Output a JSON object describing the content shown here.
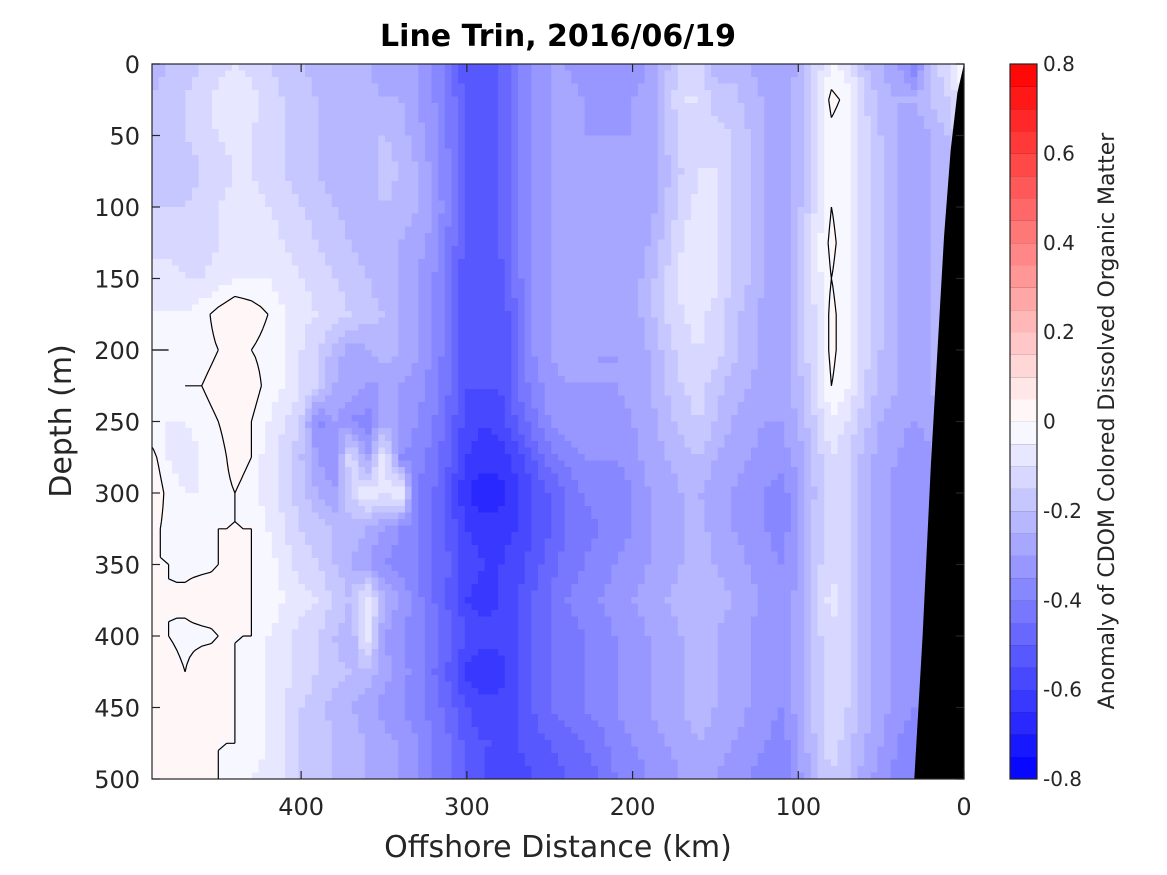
{
  "chart_data": {
    "type": "heatmap",
    "title": "Line Trin, 2016/06/19",
    "xlabel": "Offshore Distance (km)",
    "ylabel": "Depth (m)",
    "colorbar_label": "Anomaly of CDOM Colored Dissolved Organic Matter",
    "xlim": [
      490,
      0
    ],
    "ylim": [
      0,
      500
    ],
    "x_reversed": true,
    "y_reversed": true,
    "xticks": [
      {
        "value": 400,
        "label": "400"
      },
      {
        "value": 300,
        "label": "300"
      },
      {
        "value": 200,
        "label": "200"
      },
      {
        "value": 100,
        "label": "100"
      },
      {
        "value": 0,
        "label": "0"
      }
    ],
    "yticks": [
      {
        "value": 0,
        "label": "0"
      },
      {
        "value": 50,
        "label": "50"
      },
      {
        "value": 100,
        "label": "100"
      },
      {
        "value": 150,
        "label": "150"
      },
      {
        "value": 200,
        "label": "200"
      },
      {
        "value": 250,
        "label": "250"
      },
      {
        "value": 300,
        "label": "300"
      },
      {
        "value": 350,
        "label": "350"
      },
      {
        "value": 400,
        "label": "400"
      },
      {
        "value": 450,
        "label": "450"
      },
      {
        "value": 500,
        "label": "500"
      }
    ],
    "colorbar": {
      "clim": [
        -0.8,
        0.8
      ],
      "levels_step": 0.05,
      "ticks": [
        {
          "value": 0.8,
          "label": "0.8"
        },
        {
          "value": 0.6,
          "label": "0.6"
        },
        {
          "value": 0.4,
          "label": "0.4"
        },
        {
          "value": 0.2,
          "label": "0.2"
        },
        {
          "value": 0,
          "label": "0"
        },
        {
          "value": -0.2,
          "label": "-0.2"
        },
        {
          "value": -0.4,
          "label": "-0.4"
        },
        {
          "value": -0.6,
          "label": "-0.6"
        },
        {
          "value": -0.8,
          "label": "-0.8"
        }
      ],
      "colormap": {
        "negative": "#0000ff",
        "zero": "#ffffff",
        "positive": "#ff0000"
      }
    },
    "x_profiles": [
      0,
      10,
      20,
      30,
      40,
      50,
      60,
      70,
      80,
      90,
      100,
      110,
      120,
      130,
      140,
      150,
      160,
      170,
      180,
      190,
      200,
      210,
      220,
      230,
      240,
      250,
      260,
      270,
      280,
      290,
      300,
      310,
      320,
      330,
      340,
      350,
      360,
      370,
      380,
      390,
      400,
      410,
      420,
      430,
      440,
      450,
      460,
      470,
      480,
      490
    ],
    "depths": [
      0,
      25,
      50,
      75,
      100,
      125,
      150,
      175,
      200,
      225,
      250,
      275,
      300,
      325,
      350,
      375,
      400,
      425,
      450,
      475,
      500
    ],
    "values": [
      [
        0.0,
        -0.1,
        -0.2,
        -0.4,
        -0.3,
        -0.25,
        -0.2,
        -0.08,
        -0.05,
        -0.15,
        -0.25,
        -0.3,
        -0.28,
        -0.25,
        -0.22,
        -0.22,
        -0.12,
        -0.1,
        -0.22,
        -0.3,
        -0.32,
        -0.35,
        -0.35,
        -0.32,
        -0.3,
        -0.3,
        -0.35,
        -0.4,
        -0.5,
        -0.55,
        -0.55,
        -0.45,
        -0.35,
        -0.3,
        -0.28,
        -0.28,
        -0.25,
        -0.25,
        -0.25,
        -0.22,
        -0.2,
        -0.18,
        -0.15,
        -0.12,
        -0.1,
        -0.12,
        -0.15,
        -0.18,
        -0.2,
        -0.22
      ],
      [
        -0.05,
        -0.15,
        -0.2,
        -0.25,
        -0.25,
        -0.22,
        -0.15,
        -0.02,
        0.02,
        -0.1,
        -0.22,
        -0.28,
        -0.26,
        -0.22,
        -0.18,
        -0.18,
        -0.1,
        -0.1,
        -0.2,
        -0.28,
        -0.3,
        -0.32,
        -0.32,
        -0.3,
        -0.28,
        -0.3,
        -0.35,
        -0.4,
        -0.5,
        -0.55,
        -0.52,
        -0.42,
        -0.35,
        -0.3,
        -0.25,
        -0.25,
        -0.22,
        -0.22,
        -0.22,
        -0.2,
        -0.18,
        -0.15,
        -0.12,
        -0.08,
        -0.05,
        -0.08,
        -0.12,
        -0.15,
        -0.18,
        -0.2
      ],
      [
        -0.1,
        -0.2,
        -0.25,
        -0.28,
        -0.25,
        -0.2,
        -0.12,
        -0.05,
        -0.02,
        -0.12,
        -0.22,
        -0.28,
        -0.26,
        -0.2,
        -0.15,
        -0.12,
        -0.1,
        -0.12,
        -0.2,
        -0.28,
        -0.3,
        -0.3,
        -0.3,
        -0.3,
        -0.28,
        -0.3,
        -0.35,
        -0.42,
        -0.5,
        -0.55,
        -0.52,
        -0.42,
        -0.32,
        -0.28,
        -0.22,
        -0.2,
        -0.2,
        -0.22,
        -0.22,
        -0.2,
        -0.18,
        -0.15,
        -0.12,
        -0.1,
        -0.08,
        -0.1,
        -0.12,
        -0.15,
        -0.18,
        -0.2
      ],
      [
        -0.15,
        -0.2,
        -0.25,
        -0.28,
        -0.25,
        -0.2,
        -0.12,
        -0.05,
        -0.02,
        -0.12,
        -0.22,
        -0.28,
        -0.25,
        -0.2,
        -0.15,
        -0.1,
        -0.1,
        -0.15,
        -0.22,
        -0.28,
        -0.3,
        -0.3,
        -0.28,
        -0.28,
        -0.28,
        -0.3,
        -0.35,
        -0.42,
        -0.5,
        -0.52,
        -0.5,
        -0.4,
        -0.32,
        -0.25,
        -0.2,
        -0.18,
        -0.22,
        -0.25,
        -0.22,
        -0.2,
        -0.18,
        -0.15,
        -0.12,
        -0.1,
        -0.1,
        -0.12,
        -0.15,
        -0.18,
        -0.18,
        -0.18
      ],
      [
        -0.15,
        -0.22,
        -0.25,
        -0.28,
        -0.25,
        -0.2,
        -0.12,
        -0.05,
        0.0,
        -0.1,
        -0.22,
        -0.28,
        -0.25,
        -0.2,
        -0.15,
        -0.1,
        -0.08,
        -0.12,
        -0.2,
        -0.28,
        -0.3,
        -0.3,
        -0.28,
        -0.28,
        -0.28,
        -0.3,
        -0.35,
        -0.42,
        -0.5,
        -0.52,
        -0.5,
        -0.4,
        -0.3,
        -0.25,
        -0.22,
        -0.2,
        -0.22,
        -0.22,
        -0.2,
        -0.18,
        -0.15,
        -0.12,
        -0.1,
        -0.08,
        -0.08,
        -0.1,
        -0.12,
        -0.15,
        -0.15,
        -0.15
      ],
      [
        -0.15,
        -0.22,
        -0.25,
        -0.28,
        -0.25,
        -0.2,
        -0.12,
        -0.05,
        0.02,
        -0.08,
        -0.2,
        -0.28,
        -0.25,
        -0.2,
        -0.15,
        -0.08,
        -0.05,
        -0.1,
        -0.18,
        -0.25,
        -0.28,
        -0.3,
        -0.28,
        -0.28,
        -0.28,
        -0.3,
        -0.35,
        -0.42,
        -0.5,
        -0.55,
        -0.52,
        -0.42,
        -0.32,
        -0.28,
        -0.25,
        -0.22,
        -0.22,
        -0.2,
        -0.18,
        -0.15,
        -0.12,
        -0.1,
        -0.08,
        -0.08,
        -0.08,
        -0.1,
        -0.12,
        -0.12,
        -0.12,
        -0.12
      ],
      [
        -0.15,
        -0.22,
        -0.25,
        -0.28,
        -0.25,
        -0.2,
        -0.12,
        -0.05,
        0.0,
        -0.08,
        -0.2,
        -0.28,
        -0.25,
        -0.2,
        -0.15,
        -0.08,
        -0.05,
        -0.08,
        -0.15,
        -0.22,
        -0.28,
        -0.3,
        -0.28,
        -0.28,
        -0.28,
        -0.3,
        -0.35,
        -0.42,
        -0.52,
        -0.55,
        -0.55,
        -0.45,
        -0.35,
        -0.3,
        -0.25,
        -0.22,
        -0.2,
        -0.18,
        -0.15,
        -0.12,
        -0.1,
        -0.08,
        -0.05,
        -0.05,
        -0.05,
        -0.08,
        -0.1,
        -0.1,
        -0.08,
        -0.08
      ],
      [
        -0.15,
        -0.22,
        -0.25,
        -0.28,
        -0.25,
        -0.2,
        -0.12,
        -0.05,
        0.02,
        -0.1,
        -0.2,
        -0.28,
        -0.28,
        -0.22,
        -0.18,
        -0.12,
        -0.08,
        -0.1,
        -0.15,
        -0.22,
        -0.28,
        -0.3,
        -0.3,
        -0.28,
        -0.28,
        -0.3,
        -0.35,
        -0.45,
        -0.55,
        -0.55,
        -0.55,
        -0.45,
        -0.35,
        -0.3,
        -0.25,
        -0.2,
        -0.18,
        -0.15,
        -0.12,
        -0.1,
        -0.08,
        -0.05,
        0.0,
        0.03,
        0.05,
        0.02,
        -0.02,
        -0.05,
        -0.05,
        -0.05
      ],
      [
        -0.15,
        -0.22,
        -0.25,
        -0.28,
        -0.25,
        -0.2,
        -0.12,
        -0.05,
        0.02,
        -0.1,
        -0.2,
        -0.28,
        -0.28,
        -0.22,
        -0.18,
        -0.12,
        -0.1,
        -0.12,
        -0.18,
        -0.25,
        -0.28,
        -0.3,
        -0.3,
        -0.28,
        -0.28,
        -0.3,
        -0.35,
        -0.45,
        -0.55,
        -0.55,
        -0.55,
        -0.45,
        -0.35,
        -0.3,
        -0.25,
        -0.22,
        -0.25,
        -0.28,
        -0.22,
        -0.15,
        -0.1,
        -0.05,
        -0.02,
        0.0,
        0.0,
        0.0,
        -0.02,
        -0.02,
        0.0,
        0.0
      ],
      [
        -0.15,
        -0.22,
        -0.25,
        -0.28,
        -0.25,
        -0.22,
        -0.15,
        -0.05,
        0.0,
        -0.12,
        -0.22,
        -0.28,
        -0.28,
        -0.25,
        -0.22,
        -0.18,
        -0.12,
        -0.15,
        -0.2,
        -0.25,
        -0.28,
        -0.3,
        -0.3,
        -0.3,
        -0.3,
        -0.32,
        -0.38,
        -0.45,
        -0.55,
        -0.55,
        -0.55,
        -0.45,
        -0.38,
        -0.32,
        -0.3,
        -0.3,
        -0.3,
        -0.28,
        -0.25,
        -0.15,
        -0.1,
        -0.05,
        -0.02,
        0.03,
        0.0,
        0.02,
        0.0,
        0.0,
        -0.02,
        -0.02
      ],
      [
        -0.2,
        -0.25,
        -0.28,
        -0.3,
        -0.28,
        -0.25,
        -0.18,
        -0.1,
        -0.05,
        -0.15,
        -0.25,
        -0.3,
        -0.3,
        -0.28,
        -0.25,
        -0.2,
        -0.15,
        -0.18,
        -0.22,
        -0.28,
        -0.3,
        -0.32,
        -0.32,
        -0.32,
        -0.32,
        -0.35,
        -0.42,
        -0.5,
        -0.58,
        -0.6,
        -0.58,
        -0.48,
        -0.4,
        -0.35,
        -0.3,
        -0.28,
        -0.38,
        -0.35,
        -0.3,
        -0.38,
        -0.15,
        -0.1,
        -0.05,
        0.0,
        0.03,
        0.0,
        -0.02,
        -0.05,
        -0.05,
        -0.05
      ],
      [
        -0.22,
        -0.28,
        -0.3,
        -0.35,
        -0.3,
        -0.28,
        -0.22,
        -0.15,
        -0.1,
        -0.18,
        -0.28,
        -0.32,
        -0.32,
        -0.3,
        -0.28,
        -0.25,
        -0.2,
        -0.22,
        -0.25,
        -0.28,
        -0.32,
        -0.35,
        -0.35,
        -0.35,
        -0.38,
        -0.42,
        -0.5,
        -0.58,
        -0.62,
        -0.62,
        -0.6,
        -0.5,
        -0.42,
        -0.38,
        -0.35,
        -0.05,
        -0.3,
        -0.1,
        -0.35,
        -0.3,
        -0.2,
        -0.12,
        -0.08,
        0.0,
        0.02,
        -0.02,
        -0.05,
        -0.08,
        -0.05,
        0.02
      ],
      [
        -0.22,
        -0.28,
        -0.3,
        -0.35,
        -0.32,
        -0.28,
        -0.22,
        -0.15,
        -0.12,
        -0.2,
        -0.3,
        -0.38,
        -0.35,
        -0.32,
        -0.3,
        -0.28,
        -0.25,
        -0.25,
        -0.28,
        -0.3,
        -0.35,
        -0.38,
        -0.38,
        -0.4,
        -0.45,
        -0.5,
        -0.55,
        -0.62,
        -0.68,
        -0.7,
        -0.65,
        -0.55,
        -0.45,
        -0.4,
        -0.05,
        -0.1,
        -0.05,
        -0.15,
        -0.3,
        -0.25,
        -0.18,
        -0.12,
        -0.08,
        -0.02,
        0.0,
        -0.02,
        -0.05,
        -0.05,
        -0.02,
        0.05
      ],
      [
        -0.22,
        -0.28,
        -0.3,
        -0.35,
        -0.32,
        -0.28,
        -0.22,
        -0.15,
        -0.1,
        -0.18,
        -0.3,
        -0.38,
        -0.35,
        -0.32,
        -0.3,
        -0.28,
        -0.22,
        -0.25,
        -0.28,
        -0.3,
        -0.35,
        -0.38,
        -0.4,
        -0.42,
        -0.45,
        -0.5,
        -0.55,
        -0.6,
        -0.62,
        -0.62,
        -0.6,
        -0.52,
        -0.45,
        -0.4,
        -0.35,
        -0.3,
        -0.25,
        -0.22,
        -0.2,
        -0.18,
        -0.15,
        -0.1,
        -0.05,
        0.0,
        0.0,
        0.0,
        -0.02,
        -0.05,
        -0.02,
        0.02
      ],
      [
        -0.22,
        -0.28,
        -0.3,
        -0.35,
        -0.32,
        -0.28,
        -0.22,
        -0.15,
        -0.1,
        -0.18,
        -0.3,
        -0.35,
        -0.32,
        -0.3,
        -0.28,
        -0.25,
        -0.22,
        -0.25,
        -0.28,
        -0.3,
        -0.32,
        -0.35,
        -0.38,
        -0.4,
        -0.42,
        -0.48,
        -0.52,
        -0.58,
        -0.6,
        -0.6,
        -0.58,
        -0.5,
        -0.45,
        -0.4,
        -0.38,
        -0.35,
        -0.3,
        -0.25,
        -0.2,
        -0.15,
        -0.12,
        -0.08,
        -0.02,
        0.0,
        0.0,
        0.0,
        -0.02,
        -0.02,
        0.0,
        0.0
      ],
      [
        -0.22,
        -0.28,
        -0.3,
        -0.35,
        -0.32,
        -0.28,
        -0.22,
        -0.15,
        -0.08,
        -0.15,
        -0.28,
        -0.35,
        -0.32,
        -0.28,
        -0.25,
        -0.22,
        -0.2,
        -0.22,
        -0.25,
        -0.28,
        -0.3,
        -0.32,
        -0.35,
        -0.38,
        -0.4,
        -0.45,
        -0.5,
        -0.55,
        -0.6,
        -0.62,
        -0.6,
        -0.52,
        -0.45,
        -0.38,
        -0.3,
        -0.25,
        -0.05,
        -0.2,
        -0.15,
        -0.1,
        -0.08,
        -0.05,
        -0.02,
        0.0,
        0.0,
        0.02,
        0.05,
        0.02,
        0.0,
        0.0
      ],
      [
        -0.22,
        -0.28,
        -0.3,
        -0.35,
        -0.32,
        -0.28,
        -0.22,
        -0.15,
        -0.1,
        -0.18,
        -0.28,
        -0.35,
        -0.32,
        -0.3,
        -0.28,
        -0.25,
        -0.22,
        -0.25,
        -0.28,
        -0.3,
        -0.32,
        -0.35,
        -0.38,
        -0.4,
        -0.42,
        -0.45,
        -0.5,
        -0.55,
        -0.58,
        -0.58,
        -0.55,
        -0.48,
        -0.42,
        -0.38,
        -0.35,
        -0.3,
        -0.05,
        -0.25,
        -0.2,
        -0.15,
        -0.12,
        -0.08,
        -0.05,
        0.0,
        0.0,
        0.0,
        -0.02,
        -0.02,
        0.0,
        0.0
      ],
      [
        -0.22,
        -0.28,
        -0.3,
        -0.35,
        -0.32,
        -0.28,
        -0.22,
        -0.15,
        -0.1,
        -0.18,
        -0.28,
        -0.35,
        -0.32,
        -0.3,
        -0.28,
        -0.25,
        -0.22,
        -0.25,
        -0.28,
        -0.3,
        -0.32,
        -0.35,
        -0.38,
        -0.4,
        -0.42,
        -0.45,
        -0.5,
        -0.55,
        -0.62,
        -0.65,
        -0.62,
        -0.52,
        -0.45,
        -0.38,
        -0.32,
        -0.28,
        -0.22,
        -0.2,
        -0.18,
        -0.15,
        -0.12,
        -0.08,
        -0.05,
        -0.02,
        0.0,
        0.02,
        0.05,
        0.0,
        0.03,
        0.02
      ],
      [
        -0.22,
        -0.28,
        -0.32,
        -0.35,
        -0.32,
        -0.28,
        -0.22,
        -0.15,
        -0.1,
        -0.18,
        -0.28,
        -0.35,
        -0.32,
        -0.3,
        -0.28,
        -0.25,
        -0.22,
        -0.25,
        -0.28,
        -0.3,
        -0.32,
        -0.35,
        -0.38,
        -0.4,
        -0.42,
        -0.45,
        -0.5,
        -0.55,
        -0.58,
        -0.58,
        -0.55,
        -0.48,
        -0.42,
        -0.38,
        -0.35,
        -0.32,
        -0.28,
        -0.25,
        -0.22,
        -0.18,
        -0.15,
        -0.1,
        -0.05,
        -0.02,
        0.0,
        0.02,
        0.03,
        0.0,
        0.0,
        0.0
      ],
      [
        -0.22,
        -0.3,
        -0.35,
        -0.38,
        -0.35,
        -0.3,
        -0.25,
        -0.18,
        -0.12,
        -0.2,
        -0.3,
        -0.38,
        -0.35,
        -0.32,
        -0.3,
        -0.28,
        -0.25,
        -0.28,
        -0.3,
        -0.32,
        -0.35,
        -0.38,
        -0.42,
        -0.45,
        -0.48,
        -0.5,
        -0.52,
        -0.55,
        -0.55,
        -0.55,
        -0.52,
        -0.45,
        -0.4,
        -0.35,
        -0.3,
        -0.28,
        -0.25,
        -0.22,
        -0.2,
        -0.18,
        -0.15,
        -0.1,
        -0.05,
        -0.02,
        0.0,
        0.0,
        0.0,
        0.0,
        0.02,
        0.0
      ],
      [
        -0.22,
        -0.3,
        -0.35,
        -0.4,
        -0.38,
        -0.32,
        -0.28,
        -0.2,
        -0.15,
        -0.22,
        -0.32,
        -0.4,
        -0.38,
        -0.35,
        -0.32,
        -0.3,
        -0.28,
        -0.3,
        -0.32,
        -0.35,
        -0.38,
        -0.4,
        -0.45,
        -0.48,
        -0.5,
        -0.52,
        -0.55,
        -0.58,
        -0.58,
        -0.55,
        -0.52,
        -0.45,
        -0.4,
        -0.35,
        -0.3,
        -0.28,
        -0.25,
        -0.22,
        -0.2,
        -0.18,
        -0.15,
        -0.1,
        -0.08,
        -0.05,
        -0.02,
        0.0,
        0.02,
        0.0,
        0.0,
        0.0
      ]
    ],
    "seafloor_mask": [
      [
        0,
        0
      ],
      [
        0,
        500
      ],
      [
        30,
        500
      ],
      [
        25,
        400
      ],
      [
        20,
        280
      ],
      [
        16,
        200
      ],
      [
        12,
        120
      ],
      [
        8,
        60
      ],
      [
        4,
        20
      ],
      [
        0,
        0
      ]
    ]
  }
}
